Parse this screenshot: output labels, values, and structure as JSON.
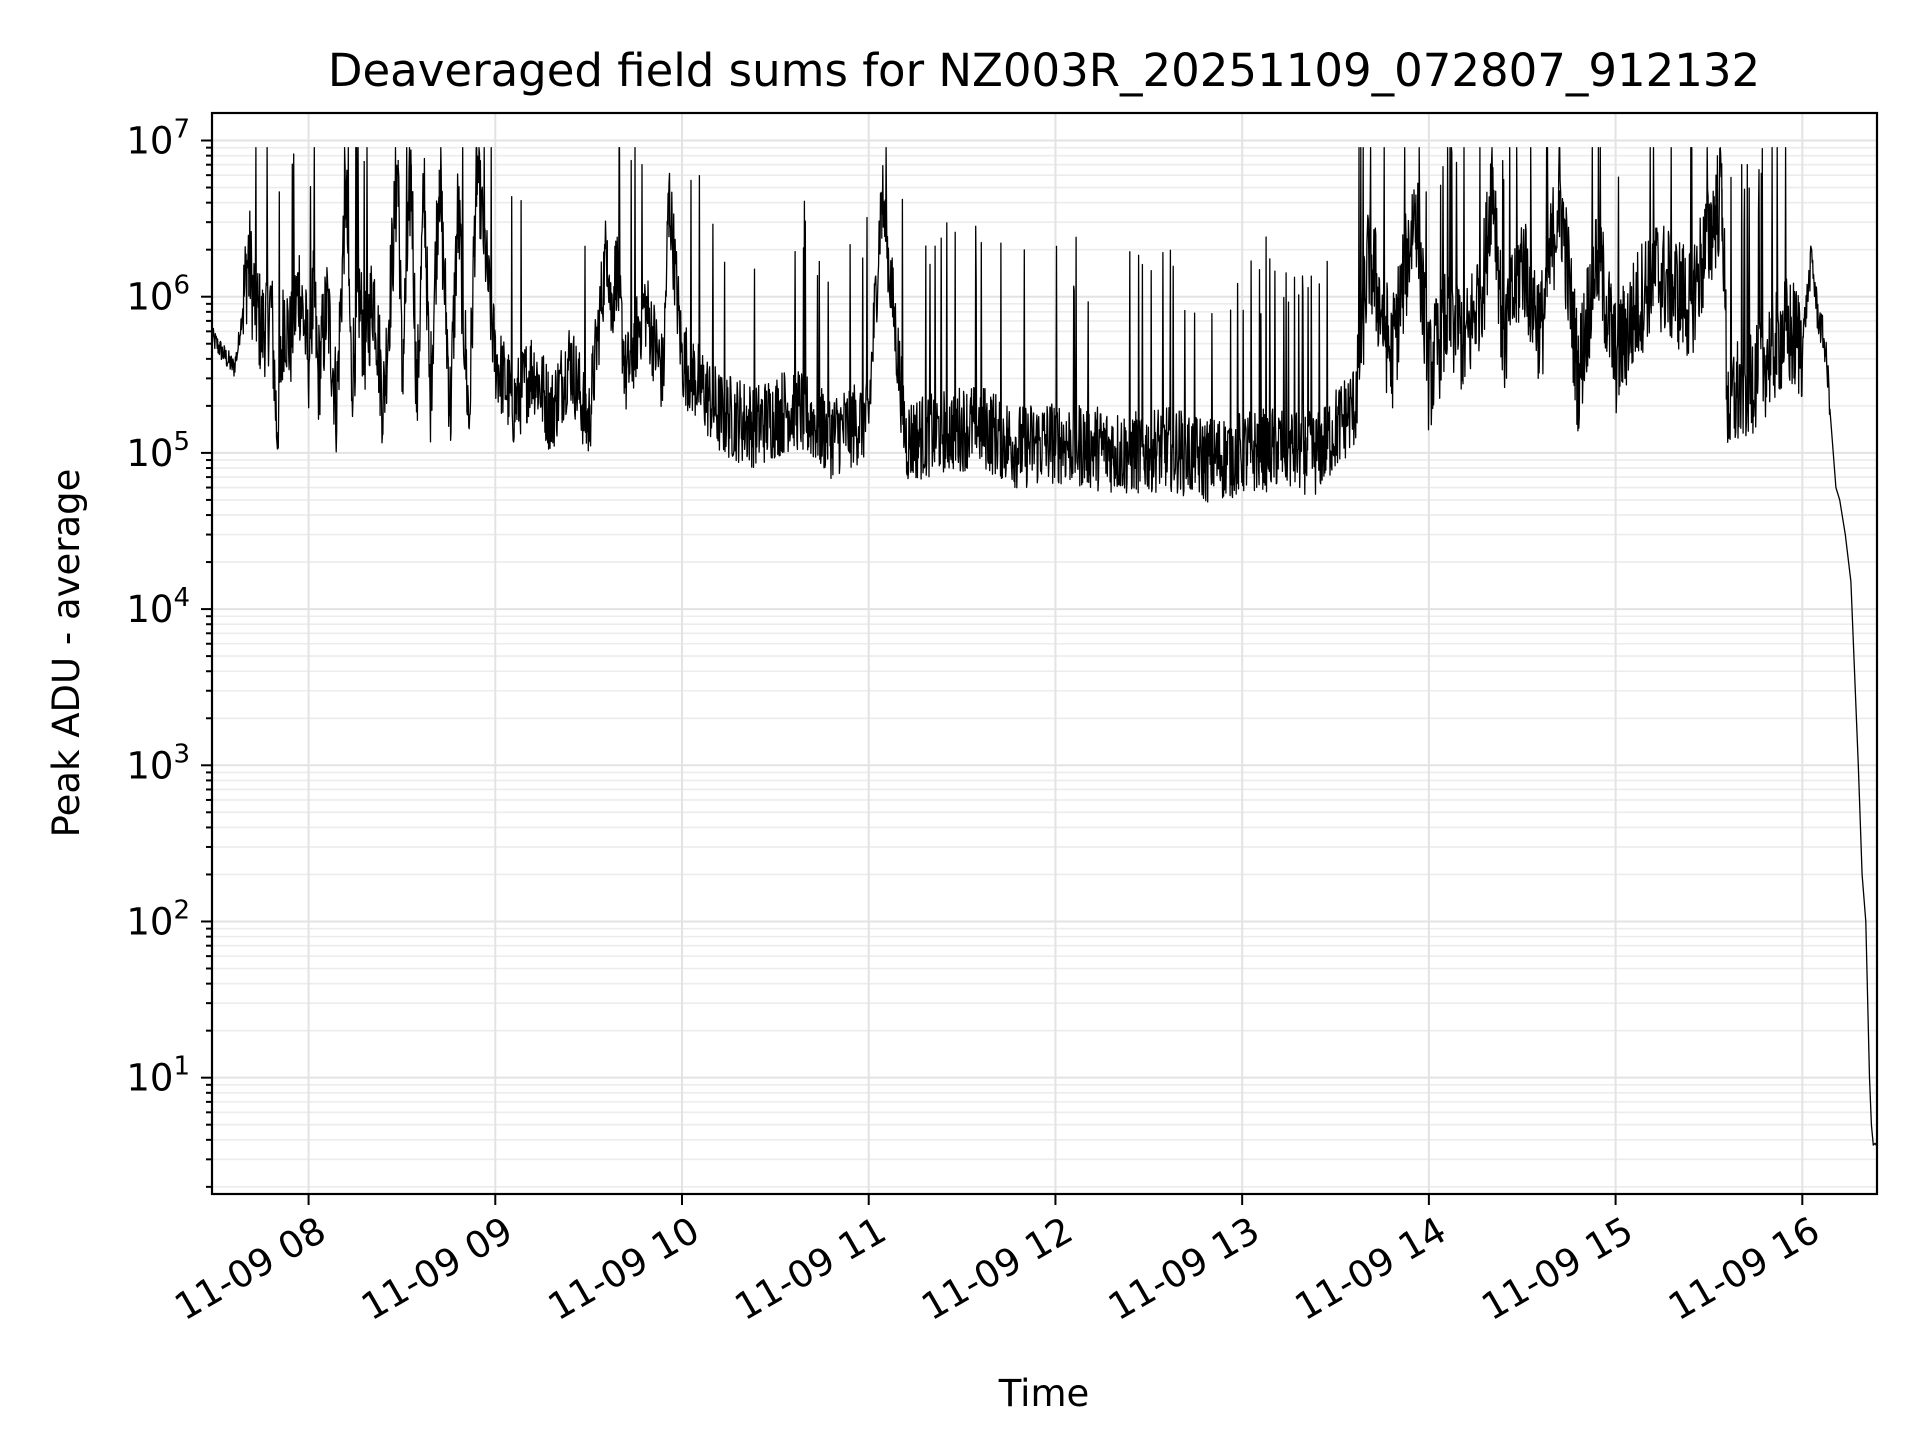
{
  "chart_data": {
    "type": "line",
    "title": "Deaveraged field sums for NZ003R_20251109_072807_912132",
    "xlabel": "Time",
    "ylabel": "Peak ADU - average",
    "yscale": "log",
    "ylim": [
      1.8,
      15000000
    ],
    "xlim_hours": [
      7.4828,
      16.4
    ],
    "grid": true,
    "x_ticks": [
      {
        "label": "11-09 08",
        "hour": 8
      },
      {
        "label": "11-09 09",
        "hour": 9
      },
      {
        "label": "11-09 10",
        "hour": 10
      },
      {
        "label": "11-09 11",
        "hour": 11
      },
      {
        "label": "11-09 12",
        "hour": 12
      },
      {
        "label": "11-09 13",
        "hour": 13
      },
      {
        "label": "11-09 14",
        "hour": 14
      },
      {
        "label": "11-09 15",
        "hour": 15
      },
      {
        "label": "11-09 16",
        "hour": 16
      }
    ],
    "y_ticks": [
      {
        "base": "10",
        "exp": "1",
        "value": 10
      },
      {
        "base": "10",
        "exp": "2",
        "value": 100
      },
      {
        "base": "10",
        "exp": "3",
        "value": 1000
      },
      {
        "base": "10",
        "exp": "4",
        "value": 10000
      },
      {
        "base": "10",
        "exp": "5",
        "value": 100000
      },
      {
        "base": "10",
        "exp": "6",
        "value": 1000000
      },
      {
        "base": "10",
        "exp": "7",
        "value": 10000000
      }
    ],
    "series": [
      {
        "name": "NZ003R_20251109_072807_912132",
        "color": "#000000",
        "x_hours": [
          7.483,
          7.55,
          7.6,
          7.62,
          7.65,
          7.68,
          7.7,
          7.75,
          7.8,
          7.83,
          7.87,
          7.9,
          7.95,
          8.0,
          8.03,
          8.05,
          8.1,
          8.15,
          8.2,
          8.23,
          8.27,
          8.3,
          8.35,
          8.4,
          8.48,
          8.5,
          8.55,
          8.58,
          8.62,
          8.65,
          8.7,
          8.76,
          8.8,
          8.86,
          8.9,
          9.0,
          9.1,
          9.2,
          9.3,
          9.4,
          9.5,
          9.6,
          9.62,
          9.65,
          9.7,
          9.8,
          9.9,
          9.93,
          10.0,
          10.2,
          10.4,
          10.6,
          10.8,
          11.0,
          11.07,
          11.2,
          11.4,
          11.6,
          11.8,
          12.0,
          12.2,
          12.4,
          12.6,
          12.8,
          13.0,
          13.2,
          13.4,
          13.6,
          13.68,
          13.8,
          13.93,
          14.0,
          14.1,
          14.2,
          14.3,
          14.34,
          14.4,
          14.5,
          14.6,
          14.7,
          14.8,
          14.9,
          15.0,
          15.2,
          15.4,
          15.57,
          15.6,
          15.8,
          15.9,
          16.0,
          16.05,
          16.08,
          16.12,
          16.15,
          16.18,
          16.2,
          16.23,
          16.26,
          16.3,
          16.32,
          16.34,
          16.36,
          16.37,
          16.38,
          16.39,
          16.395,
          16.4
        ],
        "y_values": [
          550000,
          420000,
          350000,
          450000,
          900000,
          2000000,
          1100000,
          600000,
          900000,
          140000,
          800000,
          500000,
          1200000,
          400000,
          1100000,
          300000,
          900000,
          200000,
          5500000,
          300000,
          1000000,
          500000,
          1100000,
          200000,
          7500000,
          300000,
          7000000,
          200000,
          5500000,
          200000,
          6500000,
          180000,
          3800000,
          150000,
          7500000,
          400000,
          200000,
          350000,
          180000,
          400000,
          150000,
          2300000,
          800000,
          1600000,
          300000,
          900000,
          300000,
          4800000,
          400000,
          180000,
          150000,
          200000,
          130000,
          170000,
          4700000,
          120000,
          140000,
          150000,
          110000,
          120000,
          110000,
          100000,
          110000,
          90000,
          100000,
          110000,
          100000,
          200000,
          1900000,
          400000,
          4000000,
          300000,
          800000,
          500000,
          1500000,
          6700000,
          500000,
          1800000,
          600000,
          4800000,
          300000,
          2000000,
          400000,
          1500000,
          900000,
          4900000,
          200000,
          400000,
          600000,
          500000,
          1800000,
          800000,
          500000,
          200000,
          60000,
          50000,
          30000,
          15000,
          1000,
          200,
          100,
          10,
          5,
          3.7,
          3.8,
          3.7,
          3.7
        ]
      }
    ]
  }
}
